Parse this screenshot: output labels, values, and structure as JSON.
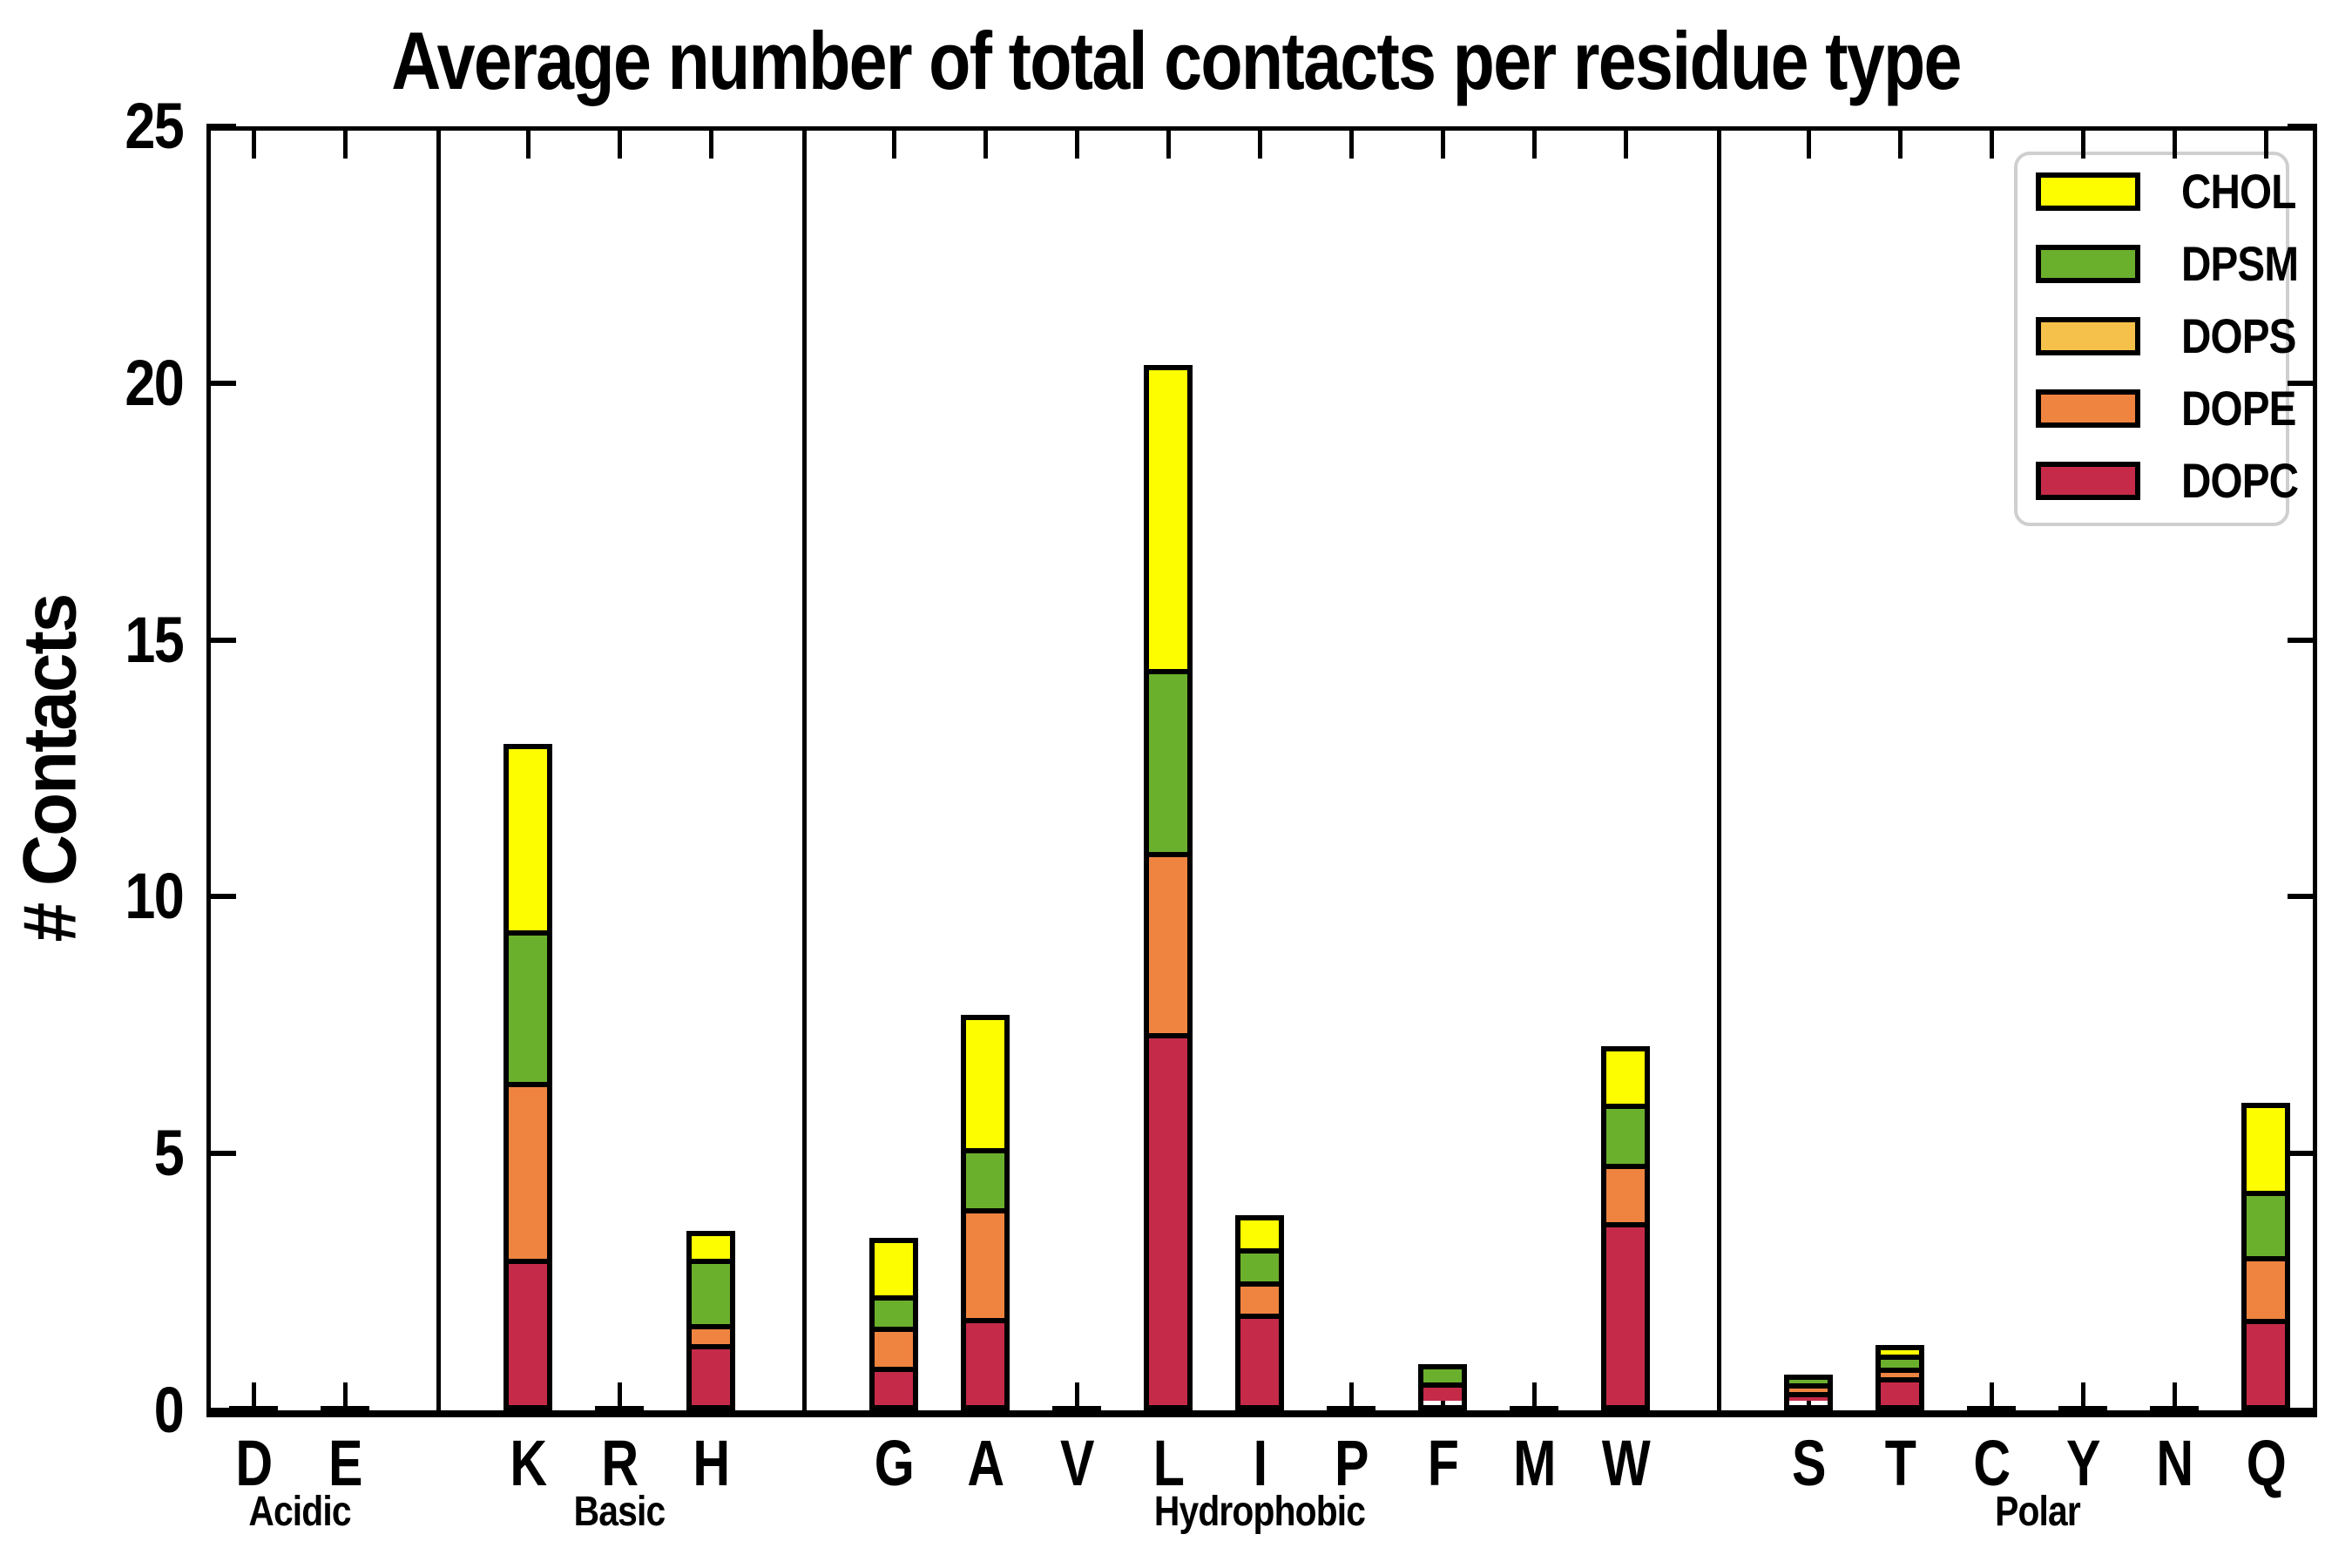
{
  "title": "Average number of total contacts per residue type",
  "y_axis": {
    "label": "# Contacts",
    "ticks": [
      0,
      5,
      10,
      15,
      20,
      25
    ],
    "max": 25
  },
  "legend": {
    "items": [
      {
        "label": "CHOL",
        "color": "#fdfd00"
      },
      {
        "label": "DPSM",
        "color": "#6bb02d"
      },
      {
        "label": "DOPS",
        "color": "#f6c14b"
      },
      {
        "label": "DOPE",
        "color": "#ef8440"
      },
      {
        "label": "DOPC",
        "color": "#c62a49"
      }
    ]
  },
  "chart_data": {
    "type": "bar",
    "stacked": true,
    "title": "Average number of total contacts per residue type",
    "xlabel": "",
    "ylabel": "# Contacts",
    "ylim": [
      0,
      25
    ],
    "grid": false,
    "legend_position": "upper right",
    "categories": [
      "D",
      "E",
      "K",
      "R",
      "H",
      "G",
      "A",
      "V",
      "L",
      "I",
      "P",
      "F",
      "M",
      "W",
      "S",
      "T",
      "C",
      "Y",
      "N",
      "Q"
    ],
    "series": [
      {
        "name": "DOPC",
        "color": "#c62a49",
        "values": [
          0.02,
          0.02,
          2.85,
          0.03,
          1.27,
          0.76,
          1.71,
          0.02,
          7.32,
          1.92,
          0.02,
          0.43,
          0.02,
          3.71,
          0.2,
          0.73,
          0.01,
          0.01,
          0.02,
          1.71
        ]
      },
      {
        "name": "DOPE",
        "color": "#ef8440",
        "values": [
          0.01,
          0.01,
          3.47,
          0.01,
          0.32,
          0.79,
          2.17,
          0.01,
          3.5,
          0.61,
          0.01,
          0.03,
          0.01,
          1.11,
          0.26,
          0.14,
          0.01,
          0.01,
          0.01,
          1.22
        ]
      },
      {
        "name": "DOPS",
        "color": "#f6c14b",
        "values": [
          0.0,
          0.0,
          0.02,
          0.0,
          0.02,
          0.02,
          0.02,
          0.0,
          0.03,
          0.02,
          0.0,
          0.0,
          0.0,
          0.02,
          0.0,
          0.0,
          0.0,
          0.0,
          0.0,
          0.02
        ]
      },
      {
        "name": "DPSM",
        "color": "#6bb02d",
        "values": [
          0.0,
          0.01,
          2.96,
          0.01,
          1.38,
          0.6,
          1.13,
          0.01,
          3.55,
          0.63,
          0.0,
          0.42,
          0.0,
          1.15,
          0.23,
          0.26,
          0.0,
          0.0,
          0.0,
          1.28
        ]
      },
      {
        "name": "CHOL",
        "color": "#fdfd00",
        "values": [
          0.0,
          0.0,
          3.68,
          0.0,
          0.5,
          1.18,
          2.67,
          0.0,
          5.95,
          0.62,
          0.0,
          0.02,
          0.0,
          1.1,
          0.0,
          0.14,
          0.0,
          0.0,
          0.0,
          1.76
        ]
      }
    ],
    "totals": [
      0.03,
      0.04,
      12.98,
      0.05,
      3.49,
      3.35,
      7.7,
      0.04,
      20.35,
      3.8,
      0.03,
      0.9,
      0.03,
      7.09,
      0.69,
      1.27,
      0.02,
      0.02,
      0.03,
      5.99
    ],
    "group_labels": [
      {
        "label": "Acidic",
        "categories": [
          "D",
          "E"
        ]
      },
      {
        "label": "Basic",
        "categories": [
          "K",
          "R",
          "H"
        ]
      },
      {
        "label": "Hydrophobic",
        "categories": [
          "G",
          "A",
          "V",
          "L",
          "I",
          "P",
          "F",
          "M",
          "W"
        ]
      },
      {
        "label": "Polar",
        "categories": [
          "S",
          "T",
          "C",
          "Y",
          "N",
          "Q"
        ]
      }
    ]
  }
}
